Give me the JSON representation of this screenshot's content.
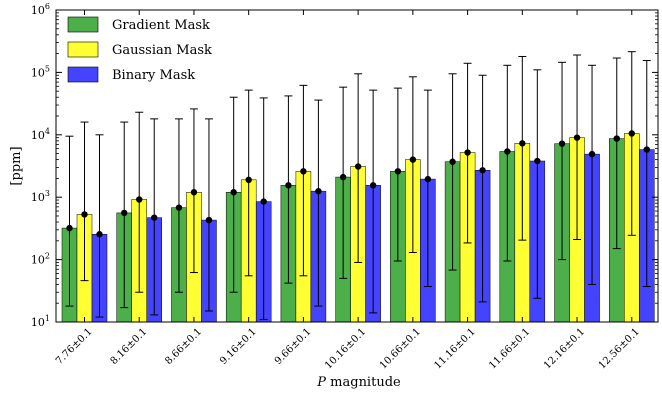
{
  "chart_data": {
    "type": "bar",
    "xlabel_italic": "P",
    "xlabel_rest": " magnitude",
    "ylabel": "[ppm]",
    "yscale": "log",
    "ylim": [
      10,
      1000000
    ],
    "yticks": [
      {
        "value": 10,
        "base": "10",
        "exp": "1"
      },
      {
        "value": 100,
        "base": "10",
        "exp": "2"
      },
      {
        "value": 1000,
        "base": "10",
        "exp": "3"
      },
      {
        "value": 10000,
        "base": "10",
        "exp": "4"
      },
      {
        "value": 100000,
        "base": "10",
        "exp": "5"
      },
      {
        "value": 1000000,
        "base": "10",
        "exp": "6"
      }
    ],
    "categories": [
      "7.76±0.1",
      "8.16±0.1",
      "8.66±0.1",
      "9.16±0.1",
      "9.66±0.1",
      "10.16±0.1",
      "10.66±0.1",
      "11.16±0.1",
      "11.66±0.1",
      "12.16±0.1",
      "12.56±0.1"
    ],
    "legend_position": "top-left",
    "grid": false,
    "series": [
      {
        "name": "Gradient Mask",
        "color": "#4daf4a",
        "values": [
          320,
          560,
          680,
          1200,
          1550,
          2100,
          2600,
          3700,
          5400,
          7200,
          8700
        ],
        "err_low": [
          18,
          17,
          30,
          30,
          42,
          50,
          95,
          68,
          95,
          100,
          150
        ],
        "err_high": [
          9500,
          16000,
          18000,
          40000,
          42000,
          58000,
          56000,
          95000,
          130000,
          145000,
          170000
        ]
      },
      {
        "name": "Gaussian Mask",
        "color": "#ffff33",
        "values": [
          530,
          920,
          1200,
          1900,
          2600,
          3100,
          4000,
          5200,
          7300,
          9000,
          10500
        ],
        "err_low": [
          46,
          30,
          62,
          55,
          55,
          90,
          130,
          185,
          205,
          210,
          245
        ],
        "err_high": [
          16000,
          23000,
          26000,
          52000,
          62000,
          95000,
          85000,
          140000,
          180000,
          190000,
          215000
        ]
      },
      {
        "name": "Binary Mask",
        "color": "#4444ff",
        "values": [
          255,
          470,
          430,
          850,
          1250,
          1550,
          1950,
          2700,
          3800,
          4900,
          5800
        ],
        "err_low": [
          12,
          13,
          15,
          11,
          18,
          14,
          37,
          21,
          24,
          40,
          37
        ],
        "err_high": [
          10000,
          18000,
          18000,
          39000,
          36000,
          52000,
          52000,
          90000,
          110000,
          130000,
          155000
        ]
      }
    ]
  }
}
